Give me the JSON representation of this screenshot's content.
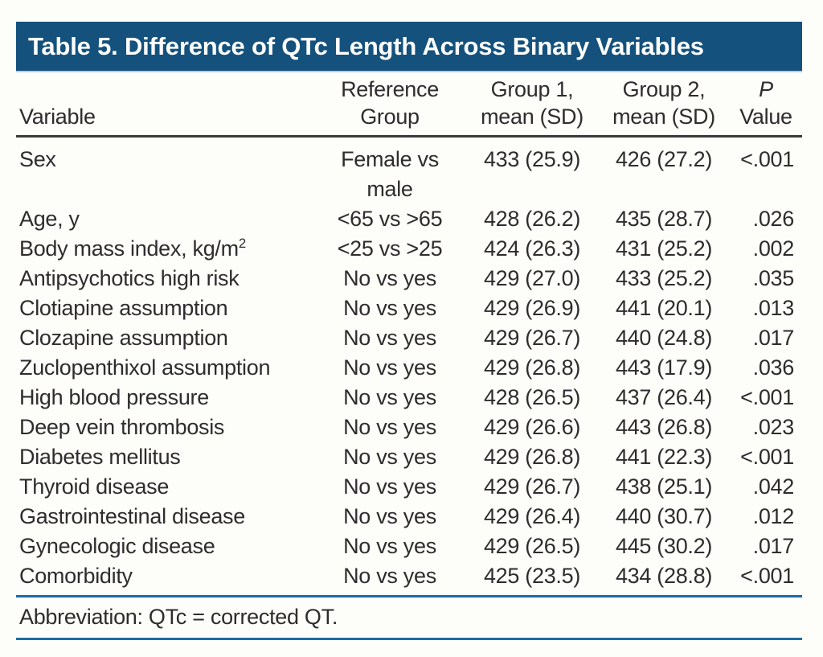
{
  "table": {
    "title": "Table 5. Difference of QTc Length Across Binary Variables",
    "columns": [
      {
        "id": "variable",
        "lines": [
          "Variable"
        ]
      },
      {
        "id": "reference_group",
        "lines": [
          "Reference",
          "Group"
        ]
      },
      {
        "id": "group1",
        "lines": [
          "Group 1,",
          "mean (SD)"
        ]
      },
      {
        "id": "group2",
        "lines": [
          "Group 2,",
          "mean (SD)"
        ]
      },
      {
        "id": "p_value",
        "lines": [
          "P",
          "Value"
        ]
      }
    ],
    "rows": [
      {
        "variable": "Sex",
        "variable_sup": "",
        "reference": "Female vs\nmale",
        "group1": "433 (25.9)",
        "group2": "426 (27.2)",
        "p": "<.001"
      },
      {
        "variable": "Age, y",
        "variable_sup": "",
        "reference": "<65 vs >65",
        "group1": "428 (26.2)",
        "group2": "435 (28.7)",
        "p": ".026"
      },
      {
        "variable": "Body mass index, kg/m",
        "variable_sup": "2",
        "reference": "<25 vs >25",
        "group1": "424 (26.3)",
        "group2": "431 (25.2)",
        "p": ".002"
      },
      {
        "variable": "Antipsychotics high risk",
        "variable_sup": "",
        "reference": "No vs yes",
        "group1": "429 (27.0)",
        "group2": "433 (25.2)",
        "p": ".035"
      },
      {
        "variable": "Clotiapine assumption",
        "variable_sup": "",
        "reference": "No vs yes",
        "group1": "429 (26.9)",
        "group2": "441 (20.1)",
        "p": ".013"
      },
      {
        "variable": "Clozapine assumption",
        "variable_sup": "",
        "reference": "No vs yes",
        "group1": "429 (26.7)",
        "group2": "440 (24.8)",
        "p": ".017"
      },
      {
        "variable": "Zuclopenthixol assumption",
        "variable_sup": "",
        "reference": "No vs yes",
        "group1": "429 (26.8)",
        "group2": "443 (17.9)",
        "p": ".036"
      },
      {
        "variable": "High blood pressure",
        "variable_sup": "",
        "reference": "No vs yes",
        "group1": "428 (26.5)",
        "group2": "437 (26.4)",
        "p": "<.001"
      },
      {
        "variable": "Deep vein thrombosis",
        "variable_sup": "",
        "reference": "No vs yes",
        "group1": "429 (26.6)",
        "group2": "443 (26.8)",
        "p": ".023"
      },
      {
        "variable": "Diabetes mellitus",
        "variable_sup": "",
        "reference": "No vs yes",
        "group1": "429 (26.8)",
        "group2": "441 (22.3)",
        "p": "<.001"
      },
      {
        "variable": "Thyroid disease",
        "variable_sup": "",
        "reference": "No vs yes",
        "group1": "429 (26.7)",
        "group2": "438 (25.1)",
        "p": ".042"
      },
      {
        "variable": "Gastrointestinal disease",
        "variable_sup": "",
        "reference": "No vs yes",
        "group1": "429 (26.4)",
        "group2": "440 (30.7)",
        "p": ".012"
      },
      {
        "variable": "Gynecologic disease",
        "variable_sup": "",
        "reference": "No vs yes",
        "group1": "429 (26.5)",
        "group2": "445 (30.2)",
        "p": ".017"
      },
      {
        "variable": "Comorbidity",
        "variable_sup": "",
        "reference": "No vs yes",
        "group1": "425 (23.5)",
        "group2": "434 (28.8)",
        "p": "<.001"
      }
    ],
    "footnote": "Abbreviation: QTc = corrected QT."
  },
  "colors": {
    "header_bar": "#14517C",
    "rule_blue": "#1C6CA4",
    "rule_dark": "#3A3A3A",
    "text": "#2E2C2D",
    "page_bg": "#FDFDFA",
    "title_text": "#FFFFFF"
  }
}
